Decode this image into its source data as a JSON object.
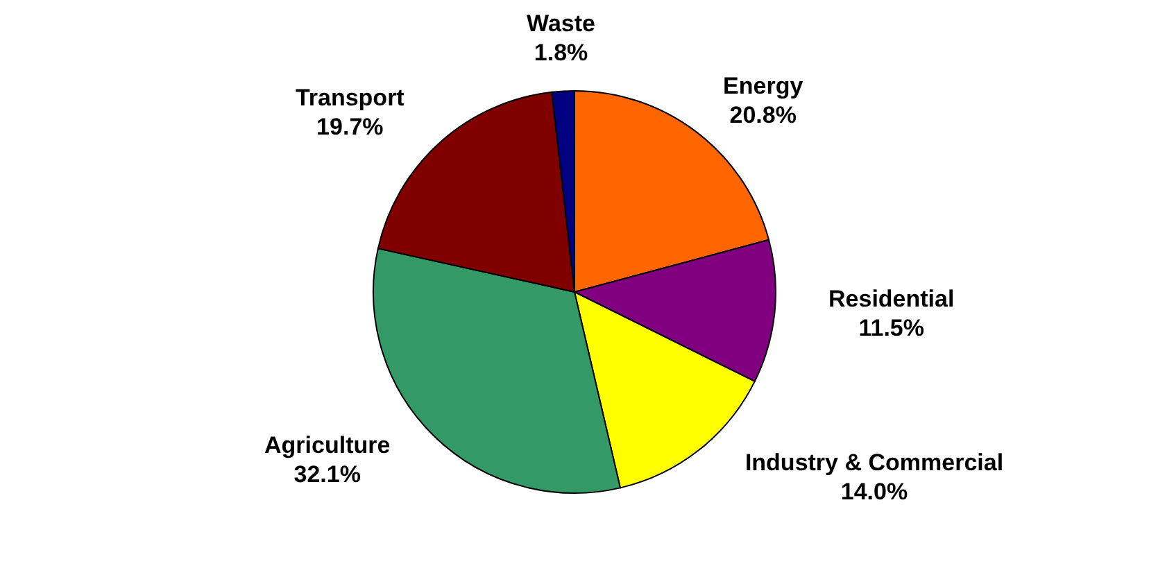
{
  "chart_data": {
    "type": "pie",
    "categories": [
      "Energy",
      "Residential",
      "Industry & Commercial",
      "Agriculture",
      "Transport",
      "Waste"
    ],
    "values": [
      20.8,
      11.5,
      14.0,
      32.1,
      19.7,
      1.8
    ],
    "colors": [
      "#ff6600",
      "#800080",
      "#ffff00",
      "#339966",
      "#800000",
      "#000080"
    ],
    "value_labels": [
      "20.8%",
      "11.5%",
      "14.0%",
      "32.1%",
      "19.7%",
      "1.8%"
    ]
  }
}
